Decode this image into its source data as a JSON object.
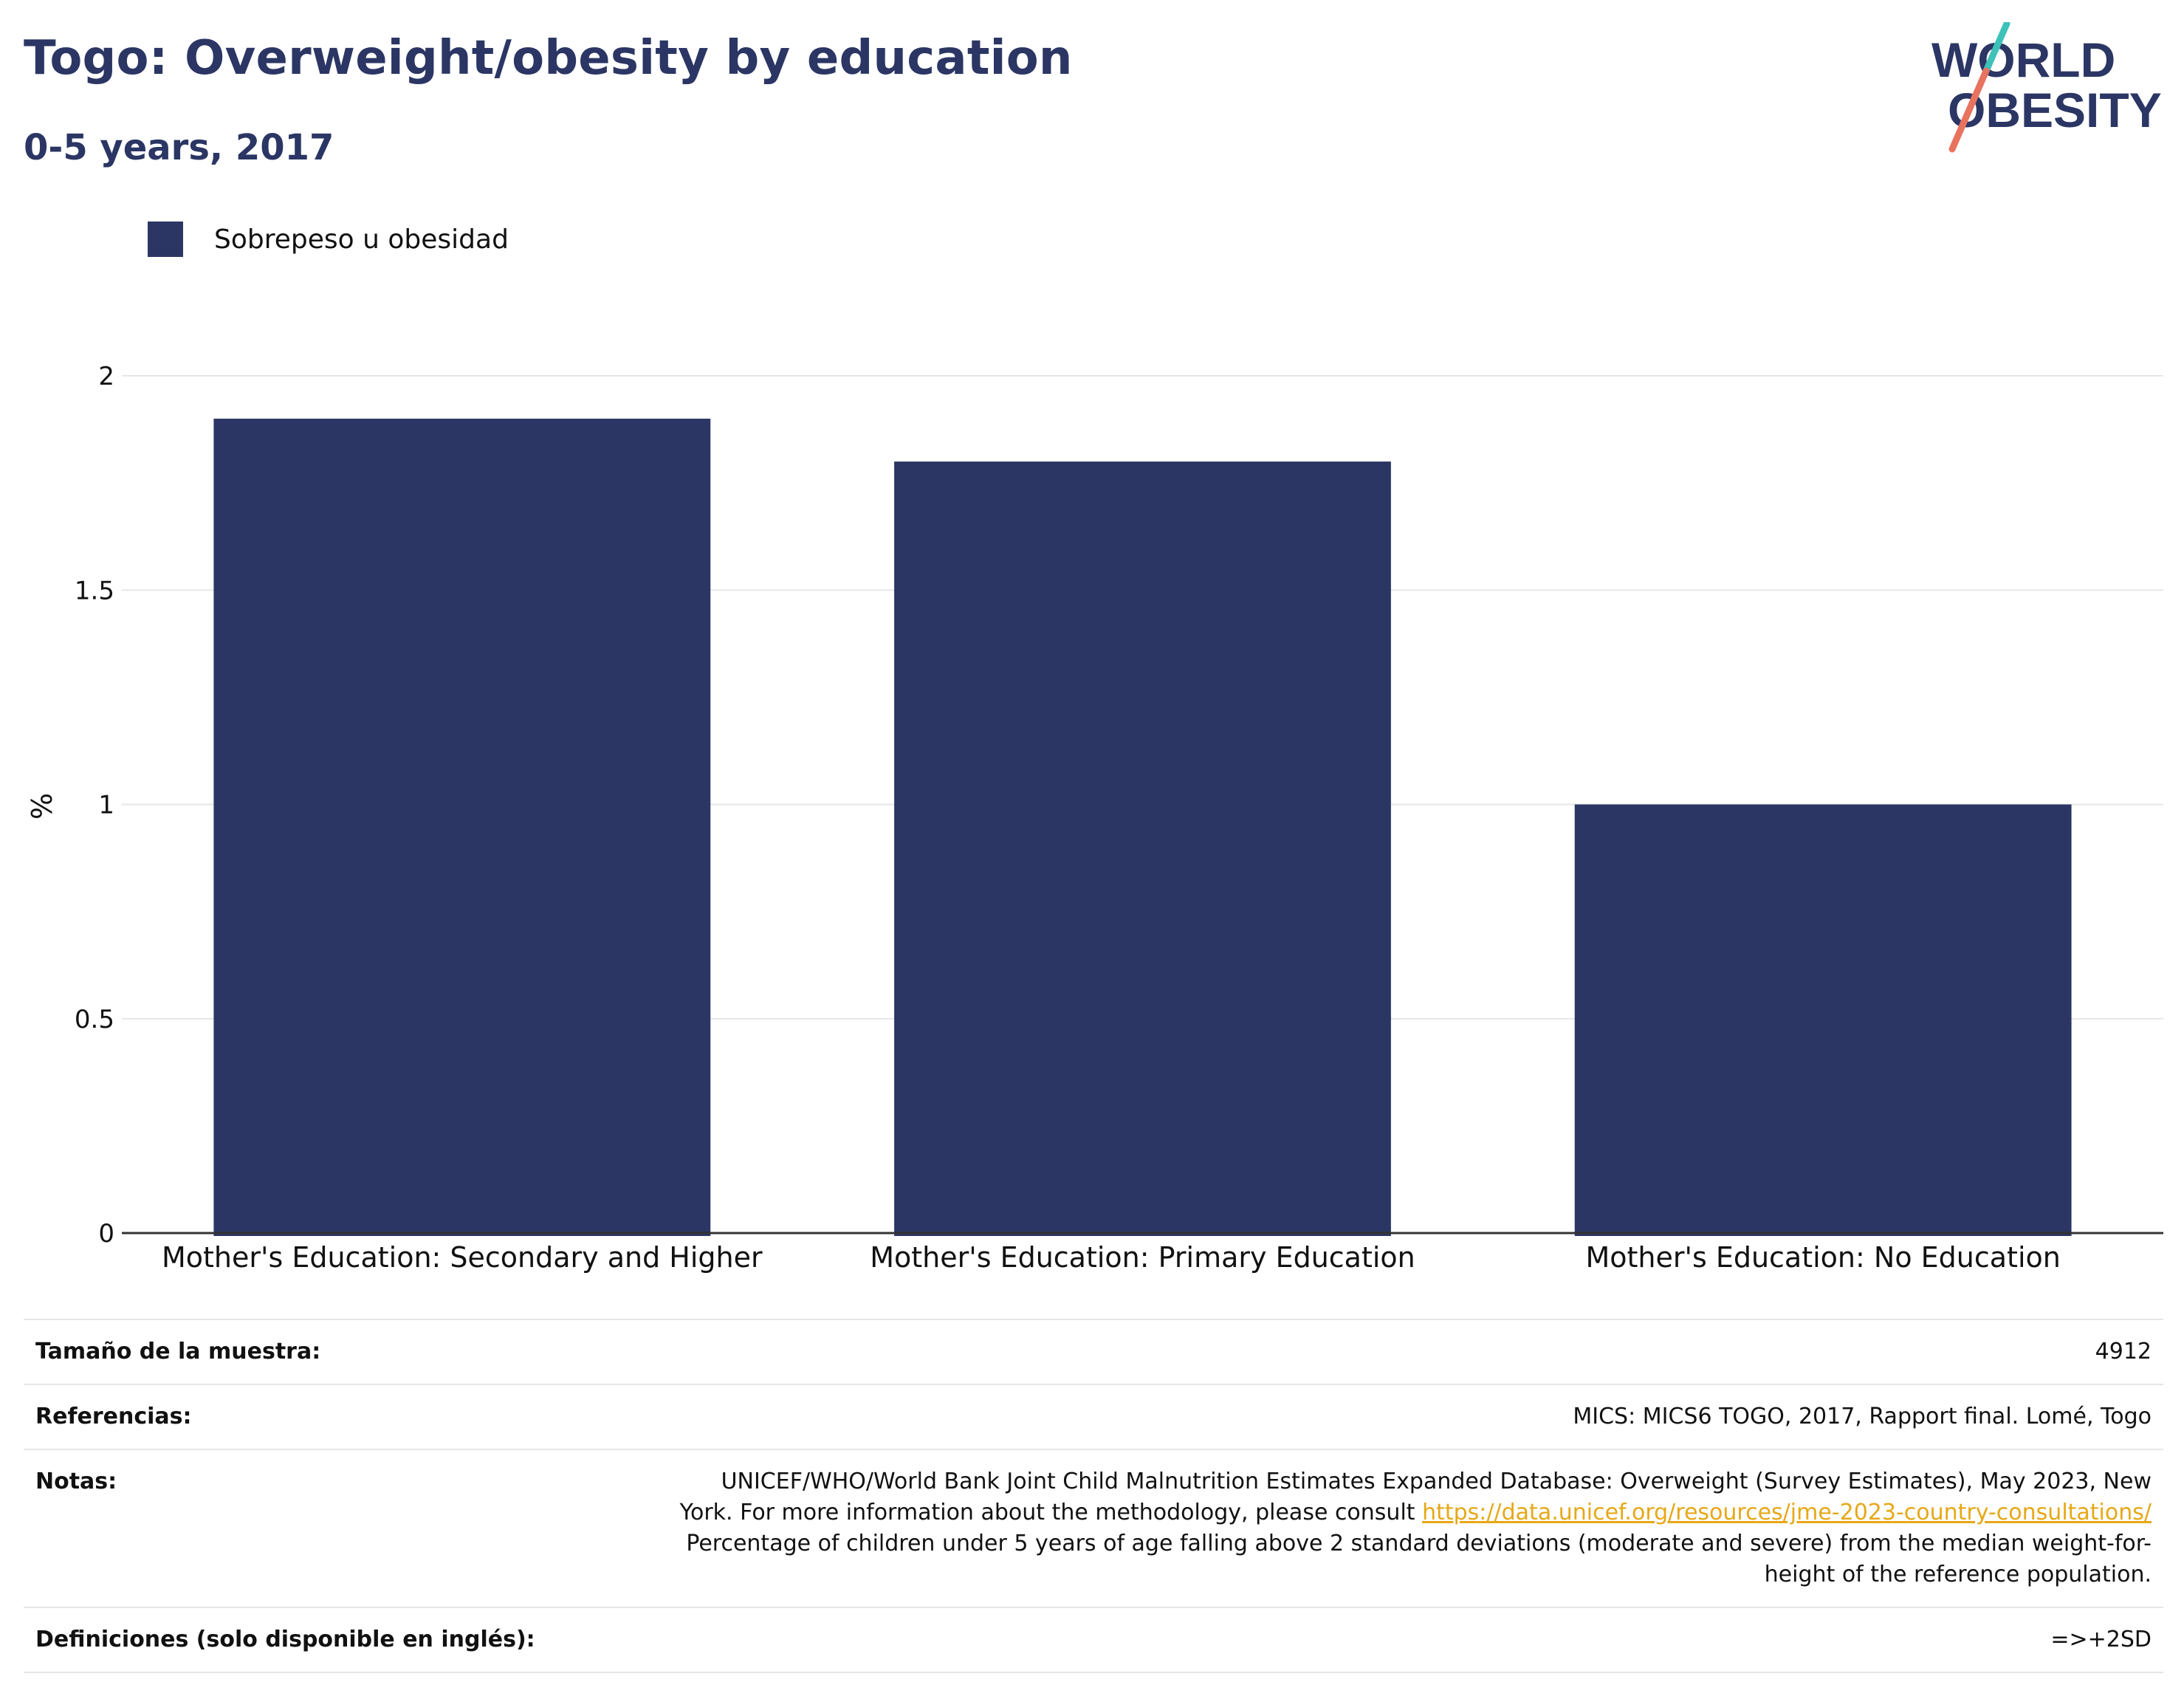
{
  "header": {
    "title": "Togo: Overweight/obesity by education",
    "subtitle": "0-5 years, 2017"
  },
  "logo": {
    "line1": "WORLD",
    "line2": "OBESITY",
    "colors": {
      "text": "#2b3664",
      "slash_top": "#3ec1b9",
      "slash_bottom": "#e8735f"
    }
  },
  "colors": {
    "bar": "#2b3664",
    "grid": "#e6e6e6",
    "axis": "#333333",
    "link": "#e6a817"
  },
  "chart_data": {
    "type": "bar",
    "title": "Togo: Overweight/obesity by education",
    "subtitle": "0-5 years, 2017",
    "xlabel": "",
    "ylabel": "%",
    "categories": [
      "Mother's Education: Secondary and Higher",
      "Mother's Education: Primary Education",
      "Mother's Education: No Education"
    ],
    "series": [
      {
        "name": "Sobrepeso u obesidad",
        "values": [
          1.9,
          1.8,
          1.0
        ]
      }
    ],
    "ylim": [
      0,
      2
    ],
    "yticks": [
      "0",
      "0.5",
      "1",
      "1.5",
      "2"
    ],
    "grid": true,
    "legend_position": "top-left"
  },
  "table": {
    "sample": {
      "label": "Tamaño de la muestra:",
      "value": "4912"
    },
    "references": {
      "label": "Referencias:",
      "value": "MICS: MICS6 TOGO, 2017, Rapport final. Lomé, Togo"
    },
    "notes": {
      "label": "Notas:",
      "line1": "UNICEF/WHO/World Bank Joint Child Malnutrition Estimates Expanded Database: Overweight (Survey Estimates), May 2023, New",
      "line2_prefix": "York. For more information about the methodology, please consult ",
      "link": "https://data.unicef.org/resources/jme-2023-country-consultations/",
      "line3": "Percentage of children under 5 years of age falling above 2 standard deviations (moderate and severe) from the median weight-for-",
      "line4": "height of the reference population."
    },
    "definitions": {
      "label": "Definiciones (solo disponible en inglés):",
      "value": "=>+2SD"
    }
  }
}
